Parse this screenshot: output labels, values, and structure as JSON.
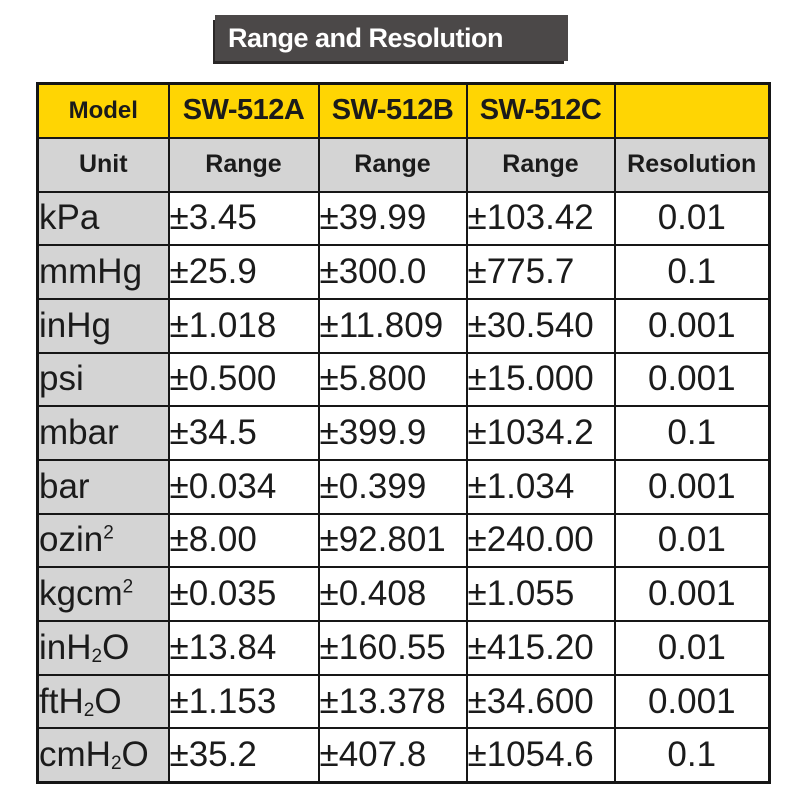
{
  "title": "Range and Resolution",
  "colors": {
    "yellow": "#ffd503",
    "gray": "#d4d4d4",
    "banner": "#4b4848",
    "border": "#161616",
    "text": "#1b1b1b",
    "banner_text": "#ffffff"
  },
  "table": {
    "model_row": [
      "Model",
      "SW-512A",
      "SW-512B",
      "SW-512C",
      ""
    ],
    "subhead_row": [
      "Unit",
      "Range",
      "Range",
      "Range",
      "Resolution"
    ],
    "rows": [
      {
        "unit": [
          {
            "t": "kPa"
          }
        ],
        "values": [
          "±3.45",
          "±39.99",
          "±103.42"
        ],
        "resolution": "0.01"
      },
      {
        "unit": [
          {
            "t": "mmHg"
          }
        ],
        "values": [
          "±25.9",
          "±300.0",
          "±775.7"
        ],
        "resolution": "0.1"
      },
      {
        "unit": [
          {
            "t": "inHg"
          }
        ],
        "values": [
          "±1.018",
          "±11.809",
          "±30.540"
        ],
        "resolution": "0.001"
      },
      {
        "unit": [
          {
            "t": "psi"
          }
        ],
        "values": [
          "±0.500",
          "±5.800",
          "±15.000"
        ],
        "resolution": "0.001"
      },
      {
        "unit": [
          {
            "t": "mbar"
          }
        ],
        "values": [
          "±34.5",
          "±399.9",
          "±1034.2"
        ],
        "resolution": "0.1"
      },
      {
        "unit": [
          {
            "t": "bar"
          }
        ],
        "values": [
          "±0.034",
          "±0.399",
          "±1.034"
        ],
        "resolution": "0.001"
      },
      {
        "unit": [
          {
            "t": "ozin"
          },
          {
            "t": "2",
            "s": "sup"
          }
        ],
        "values": [
          "±8.00",
          "±92.801",
          "±240.00"
        ],
        "resolution": "0.01"
      },
      {
        "unit": [
          {
            "t": "kgcm"
          },
          {
            "t": "2",
            "s": "sup"
          }
        ],
        "values": [
          "±0.035",
          "±0.408",
          "±1.055"
        ],
        "resolution": "0.001"
      },
      {
        "unit": [
          {
            "t": "inH"
          },
          {
            "t": "2",
            "s": "sub"
          },
          {
            "t": "O"
          }
        ],
        "values": [
          "±13.84",
          "±160.55",
          "±415.20"
        ],
        "resolution": "0.01"
      },
      {
        "unit": [
          {
            "t": "ftH"
          },
          {
            "t": "2",
            "s": "sub"
          },
          {
            "t": "O"
          }
        ],
        "values": [
          "±1.153",
          "±13.378",
          "±34.600"
        ],
        "resolution": "0.001"
      },
      {
        "unit": [
          {
            "t": "cmH"
          },
          {
            "t": "2",
            "s": "sub"
          },
          {
            "t": "O"
          }
        ],
        "values": [
          "±35.2",
          "±407.8",
          "±1054.6"
        ],
        "resolution": "0.1"
      }
    ]
  }
}
